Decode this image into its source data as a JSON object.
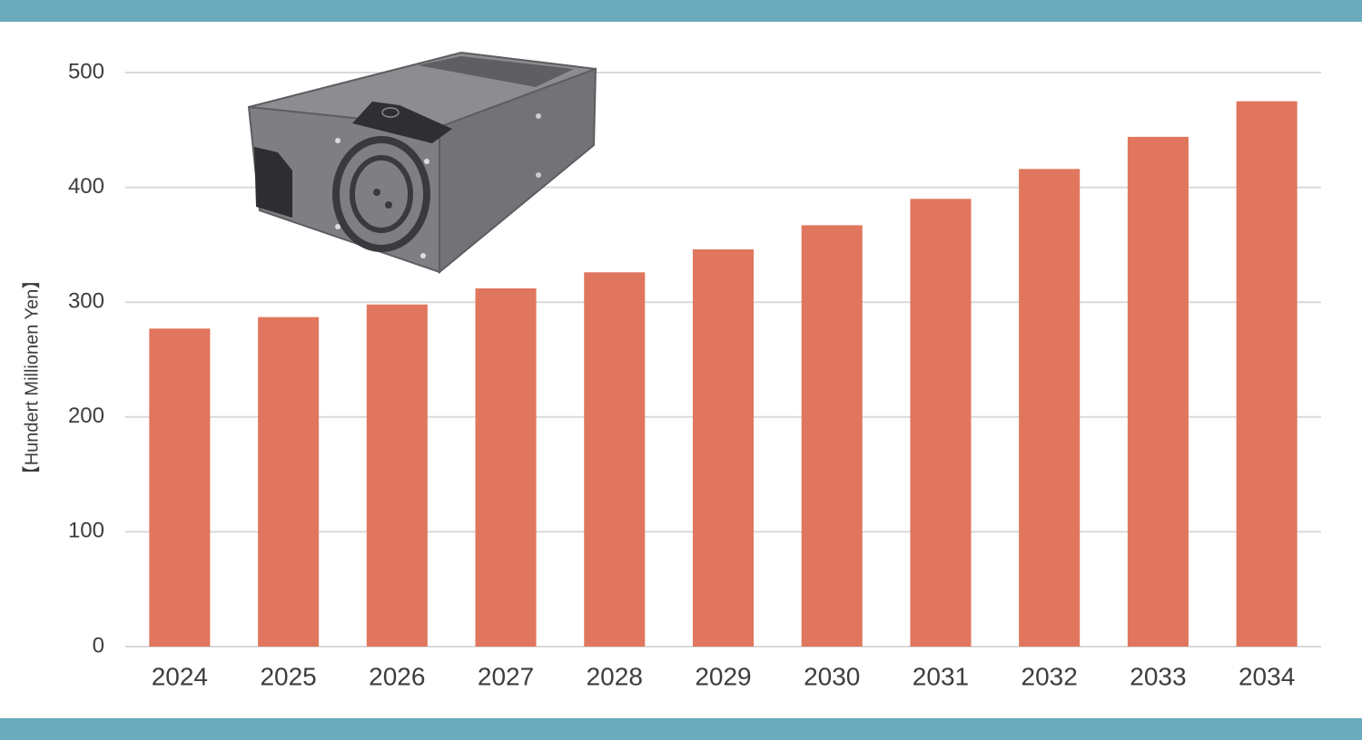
{
  "chart_data": {
    "type": "bar",
    "y_label": "【Hundert Millionen Yen】",
    "categories": [
      "2024",
      "2025",
      "2026",
      "2027",
      "2028",
      "2029",
      "2030",
      "2031",
      "2032",
      "2033",
      "2034"
    ],
    "values": [
      277,
      287,
      298,
      312,
      326,
      346,
      367,
      390,
      416,
      444,
      475
    ],
    "color": "#e0765d",
    "ylim": [
      0,
      500
    ],
    "yticks": [
      0,
      100,
      200,
      300,
      400,
      500
    ],
    "grid": true
  }
}
